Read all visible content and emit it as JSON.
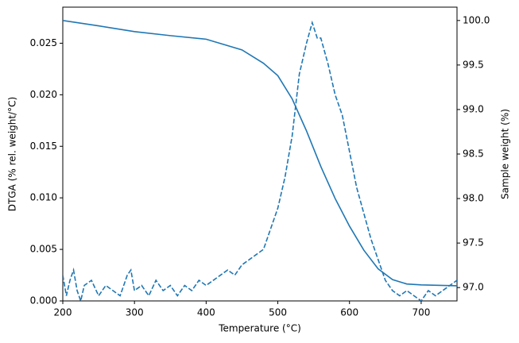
{
  "chart_data": {
    "type": "line",
    "xlabel": "Temperature (°C)",
    "ylabel": "DTGA (% rel. weight/°C)",
    "y2label": "Sample weight (%)",
    "xlim": [
      200,
      750
    ],
    "xticks": [
      200,
      300,
      400,
      500,
      600,
      700
    ],
    "ylim": [
      0,
      0.0285
    ],
    "yticks": [
      {
        "value": 0,
        "label": "0.000"
      },
      {
        "value": 0.005,
        "label": "0.005"
      },
      {
        "value": 0.01,
        "label": "0.010"
      },
      {
        "value": 0.015,
        "label": "0.015"
      },
      {
        "value": 0.02,
        "label": "0.020"
      },
      {
        "value": 0.025,
        "label": "0.025"
      }
    ],
    "y2lim": [
      96.85,
      100.15
    ],
    "y2ticks": [
      {
        "value": 97,
        "label": "97.0"
      },
      {
        "value": 97.5,
        "label": "97.5"
      },
      {
        "value": 98,
        "label": "98.0"
      },
      {
        "value": 98.5,
        "label": "98.5"
      },
      {
        "value": 99,
        "label": "99.0"
      },
      {
        "value": 99.5,
        "label": "99.5"
      },
      {
        "value": 100,
        "label": "100.0"
      }
    ],
    "grid": false,
    "series": [
      {
        "name": "DTGA",
        "color": "#1f77b4",
        "linestyle": "dashed",
        "axis": "y",
        "x": [
          200,
          205,
          210,
          215,
          220,
          225,
          230,
          240,
          250,
          260,
          270,
          280,
          290,
          295,
          300,
          310,
          320,
          330,
          340,
          350,
          360,
          370,
          380,
          390,
          400,
          410,
          420,
          430,
          440,
          450,
          460,
          470,
          480,
          490,
          500,
          510,
          520,
          530,
          540,
          548,
          555,
          560,
          570,
          580,
          590,
          600,
          610,
          620,
          630,
          640,
          650,
          660,
          670,
          680,
          690,
          700,
          710,
          720,
          730,
          740,
          750
        ],
        "values": [
          0.0025,
          0.0005,
          0.002,
          0.003,
          0.001,
          0.0,
          0.0015,
          0.002,
          0.0005,
          0.0015,
          0.001,
          0.0005,
          0.0025,
          0.003,
          0.001,
          0.0015,
          0.0005,
          0.002,
          0.001,
          0.0015,
          0.0005,
          0.0015,
          0.001,
          0.002,
          0.0015,
          0.002,
          0.0025,
          0.003,
          0.0025,
          0.0035,
          0.004,
          0.0045,
          0.005,
          0.007,
          0.009,
          0.012,
          0.016,
          0.022,
          0.025,
          0.027,
          0.0255,
          0.0255,
          0.023,
          0.02,
          0.018,
          0.0145,
          0.011,
          0.0085,
          0.006,
          0.004,
          0.002,
          0.001,
          0.0005,
          0.001,
          0.0005,
          0.0,
          0.001,
          0.0005,
          0.001,
          0.0015,
          0.002
        ]
      },
      {
        "name": "Sample weight",
        "color": "#1f77b4",
        "linestyle": "solid",
        "axis": "y2",
        "x": [
          200,
          250,
          300,
          350,
          400,
          450,
          480,
          500,
          520,
          540,
          560,
          580,
          600,
          620,
          640,
          660,
          680,
          700,
          750
        ],
        "values": [
          100.0,
          99.94,
          99.875,
          99.83,
          99.79,
          99.67,
          99.52,
          99.38,
          99.12,
          98.76,
          98.36,
          98.0,
          97.69,
          97.42,
          97.21,
          97.09,
          97.04,
          97.03,
          97.02
        ]
      }
    ]
  }
}
